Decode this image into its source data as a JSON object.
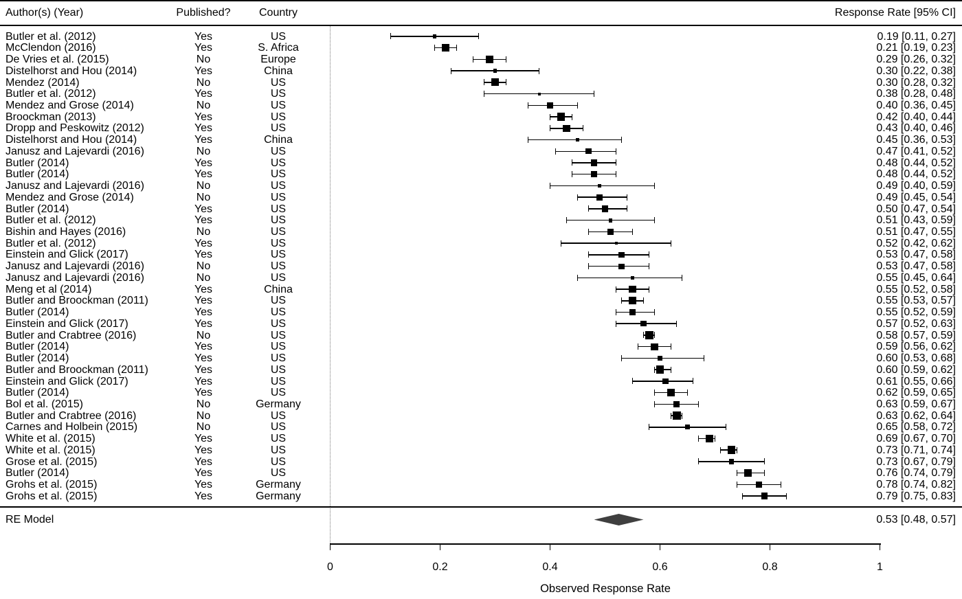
{
  "chart_data": {
    "type": "forest",
    "title": "",
    "xlabel": "Observed Response Rate",
    "xlim": [
      0,
      1
    ],
    "xticks": [
      0,
      0.2,
      0.4,
      0.6,
      0.8,
      1
    ],
    "xtick_labels": [
      "0",
      "0.2",
      "0.4",
      "0.6",
      "0.8",
      "1"
    ],
    "grid": false,
    "reference_line": 0,
    "colors": {
      "marker": "#000000",
      "diamond": "#3f3f3f",
      "axis": "#000000",
      "reference_dotted": "#777777"
    },
    "columns": {
      "author": "Author(s) (Year)",
      "published": "Published?",
      "country": "Country",
      "response_rate": "Response Rate [95% CI]"
    },
    "studies": [
      {
        "author": "Butler et al. (2012)",
        "published": "Yes",
        "country": "US",
        "est": 0.19,
        "lo": 0.11,
        "hi": 0.27
      },
      {
        "author": "McClendon (2016)",
        "published": "Yes",
        "country": "S. Africa",
        "est": 0.21,
        "lo": 0.19,
        "hi": 0.23
      },
      {
        "author": "De Vries et al. (2015)",
        "published": "No",
        "country": "Europe",
        "est": 0.29,
        "lo": 0.26,
        "hi": 0.32
      },
      {
        "author": "Distelhorst and Hou (2014)",
        "published": "Yes",
        "country": "China",
        "est": 0.3,
        "lo": 0.22,
        "hi": 0.38
      },
      {
        "author": "Mendez (2014)",
        "published": "No",
        "country": "US",
        "est": 0.3,
        "lo": 0.28,
        "hi": 0.32
      },
      {
        "author": "Butler et al. (2012)",
        "published": "Yes",
        "country": "US",
        "est": 0.38,
        "lo": 0.28,
        "hi": 0.48
      },
      {
        "author": "Mendez and Grose (2014)",
        "published": "No",
        "country": "US",
        "est": 0.4,
        "lo": 0.36,
        "hi": 0.45
      },
      {
        "author": "Broockman (2013)",
        "published": "Yes",
        "country": "US",
        "est": 0.42,
        "lo": 0.4,
        "hi": 0.44
      },
      {
        "author": "Dropp and Peskowitz (2012)",
        "published": "Yes",
        "country": "US",
        "est": 0.43,
        "lo": 0.4,
        "hi": 0.46
      },
      {
        "author": "Distelhorst and Hou (2014)",
        "published": "Yes",
        "country": "China",
        "est": 0.45,
        "lo": 0.36,
        "hi": 0.53
      },
      {
        "author": "Janusz and Lajevardi (2016)",
        "published": "No",
        "country": "US",
        "est": 0.47,
        "lo": 0.41,
        "hi": 0.52
      },
      {
        "author": "Butler (2014)",
        "published": "Yes",
        "country": "US",
        "est": 0.48,
        "lo": 0.44,
        "hi": 0.52
      },
      {
        "author": "Butler (2014)",
        "published": "Yes",
        "country": "US",
        "est": 0.48,
        "lo": 0.44,
        "hi": 0.52
      },
      {
        "author": "Janusz and Lajevardi (2016)",
        "published": "No",
        "country": "US",
        "est": 0.49,
        "lo": 0.4,
        "hi": 0.59
      },
      {
        "author": "Mendez and Grose (2014)",
        "published": "No",
        "country": "US",
        "est": 0.49,
        "lo": 0.45,
        "hi": 0.54
      },
      {
        "author": "Butler (2014)",
        "published": "Yes",
        "country": "US",
        "est": 0.5,
        "lo": 0.47,
        "hi": 0.54
      },
      {
        "author": "Butler et al. (2012)",
        "published": "Yes",
        "country": "US",
        "est": 0.51,
        "lo": 0.43,
        "hi": 0.59
      },
      {
        "author": "Bishin and Hayes (2016)",
        "published": "No",
        "country": "US",
        "est": 0.51,
        "lo": 0.47,
        "hi": 0.55
      },
      {
        "author": "Butler et al. (2012)",
        "published": "Yes",
        "country": "US",
        "est": 0.52,
        "lo": 0.42,
        "hi": 0.62
      },
      {
        "author": "Einstein and Glick (2017)",
        "published": "Yes",
        "country": "US",
        "est": 0.53,
        "lo": 0.47,
        "hi": 0.58
      },
      {
        "author": "Janusz and Lajevardi (2016)",
        "published": "No",
        "country": "US",
        "est": 0.53,
        "lo": 0.47,
        "hi": 0.58
      },
      {
        "author": "Janusz and Lajevardi (2016)",
        "published": "No",
        "country": "US",
        "est": 0.55,
        "lo": 0.45,
        "hi": 0.64
      },
      {
        "author": "Meng et al (2014)",
        "published": "Yes",
        "country": "China",
        "est": 0.55,
        "lo": 0.52,
        "hi": 0.58
      },
      {
        "author": "Butler and Broockman (2011)",
        "published": "Yes",
        "country": "US",
        "est": 0.55,
        "lo": 0.53,
        "hi": 0.57
      },
      {
        "author": "Butler (2014)",
        "published": "Yes",
        "country": "US",
        "est": 0.55,
        "lo": 0.52,
        "hi": 0.59
      },
      {
        "author": "Einstein and Glick (2017)",
        "published": "Yes",
        "country": "US",
        "est": 0.57,
        "lo": 0.52,
        "hi": 0.63
      },
      {
        "author": "Butler and Crabtree (2016)",
        "published": "No",
        "country": "US",
        "est": 0.58,
        "lo": 0.57,
        "hi": 0.59
      },
      {
        "author": "Butler (2014)",
        "published": "Yes",
        "country": "US",
        "est": 0.59,
        "lo": 0.56,
        "hi": 0.62
      },
      {
        "author": "Butler (2014)",
        "published": "Yes",
        "country": "US",
        "est": 0.6,
        "lo": 0.53,
        "hi": 0.68
      },
      {
        "author": "Butler and Broockman (2011)",
        "published": "Yes",
        "country": "US",
        "est": 0.6,
        "lo": 0.59,
        "hi": 0.62
      },
      {
        "author": "Einstein and Glick (2017)",
        "published": "Yes",
        "country": "US",
        "est": 0.61,
        "lo": 0.55,
        "hi": 0.66
      },
      {
        "author": "Butler (2014)",
        "published": "Yes",
        "country": "US",
        "est": 0.62,
        "lo": 0.59,
        "hi": 0.65
      },
      {
        "author": "Bol et al. (2015)",
        "published": "No",
        "country": "Germany",
        "est": 0.63,
        "lo": 0.59,
        "hi": 0.67
      },
      {
        "author": "Butler and Crabtree (2016)",
        "published": "No",
        "country": "US",
        "est": 0.63,
        "lo": 0.62,
        "hi": 0.64
      },
      {
        "author": "Carnes and Holbein (2015)",
        "published": "No",
        "country": "US",
        "est": 0.65,
        "lo": 0.58,
        "hi": 0.72
      },
      {
        "author": "White et al. (2015)",
        "published": "Yes",
        "country": "US",
        "est": 0.69,
        "lo": 0.67,
        "hi": 0.7
      },
      {
        "author": "White et al. (2015)",
        "published": "Yes",
        "country": "US",
        "est": 0.73,
        "lo": 0.71,
        "hi": 0.74
      },
      {
        "author": "Grose et al. (2015)",
        "published": "Yes",
        "country": "US",
        "est": 0.73,
        "lo": 0.67,
        "hi": 0.79
      },
      {
        "author": "Butler (2014)",
        "published": "Yes",
        "country": "US",
        "est": 0.76,
        "lo": 0.74,
        "hi": 0.79
      },
      {
        "author": "Grohs et al. (2015)",
        "published": "Yes",
        "country": "Germany",
        "est": 0.78,
        "lo": 0.74,
        "hi": 0.82
      },
      {
        "author": "Grohs et al. (2015)",
        "published": "Yes",
        "country": "Germany",
        "est": 0.79,
        "lo": 0.75,
        "hi": 0.83
      }
    ],
    "summary": {
      "label": "RE Model",
      "est": 0.53,
      "lo": 0.48,
      "hi": 0.57
    }
  }
}
